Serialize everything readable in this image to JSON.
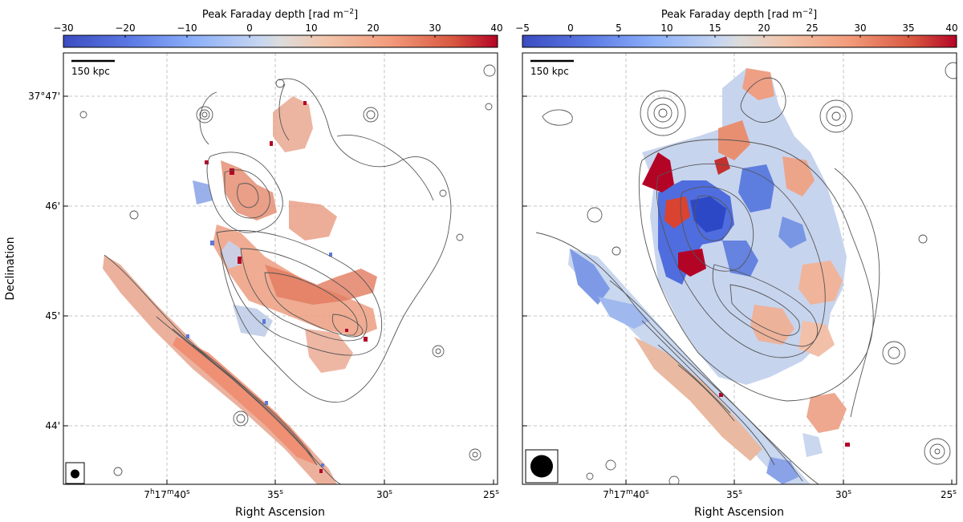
{
  "figure": {
    "panels": [
      {
        "id": "left",
        "colorbar": {
          "label": "Peak Faraday depth [rad m",
          "label_sup": "−2",
          "label_end": "]",
          "ticks": [
            "−30",
            "−20",
            "−10",
            "0",
            "10",
            "20",
            "30",
            "40"
          ],
          "range": [
            -30,
            40
          ],
          "colormap": "coolwarm"
        },
        "scalebar_label": "150 kpc",
        "xlabel": "Right Ascension",
        "ylabel": "Declination",
        "x_ticks": [
          {
            "main": "7",
            "sup1": "h",
            "mid": "17",
            "sup2": "m",
            "end": "40",
            "sup3": "s"
          },
          {
            "main": "35",
            "sup3": "s"
          },
          {
            "main": "30",
            "sup3": "s"
          },
          {
            "main": "25",
            "sup3": "s"
          }
        ],
        "y_ticks": [
          "37°47'",
          "46'",
          "45'",
          "44'"
        ],
        "beam": "small"
      },
      {
        "id": "right",
        "colorbar": {
          "label": "Peak Faraday depth [rad m",
          "label_sup": "−2",
          "label_end": "]",
          "ticks": [
            "−5",
            "0",
            "5",
            "10",
            "15",
            "20",
            "25",
            "30",
            "35",
            "40"
          ],
          "range": [
            -5,
            40
          ],
          "colormap": "coolwarm"
        },
        "scalebar_label": "150 kpc",
        "xlabel": "Right Ascension",
        "x_ticks": [
          {
            "main": "7",
            "sup1": "h",
            "mid": "17",
            "sup2": "m",
            "end": "40",
            "sup3": "s"
          },
          {
            "main": "35",
            "sup3": "s"
          },
          {
            "main": "30",
            "sup3": "s"
          },
          {
            "main": "25",
            "sup3": "s"
          }
        ],
        "beam": "large"
      }
    ]
  }
}
